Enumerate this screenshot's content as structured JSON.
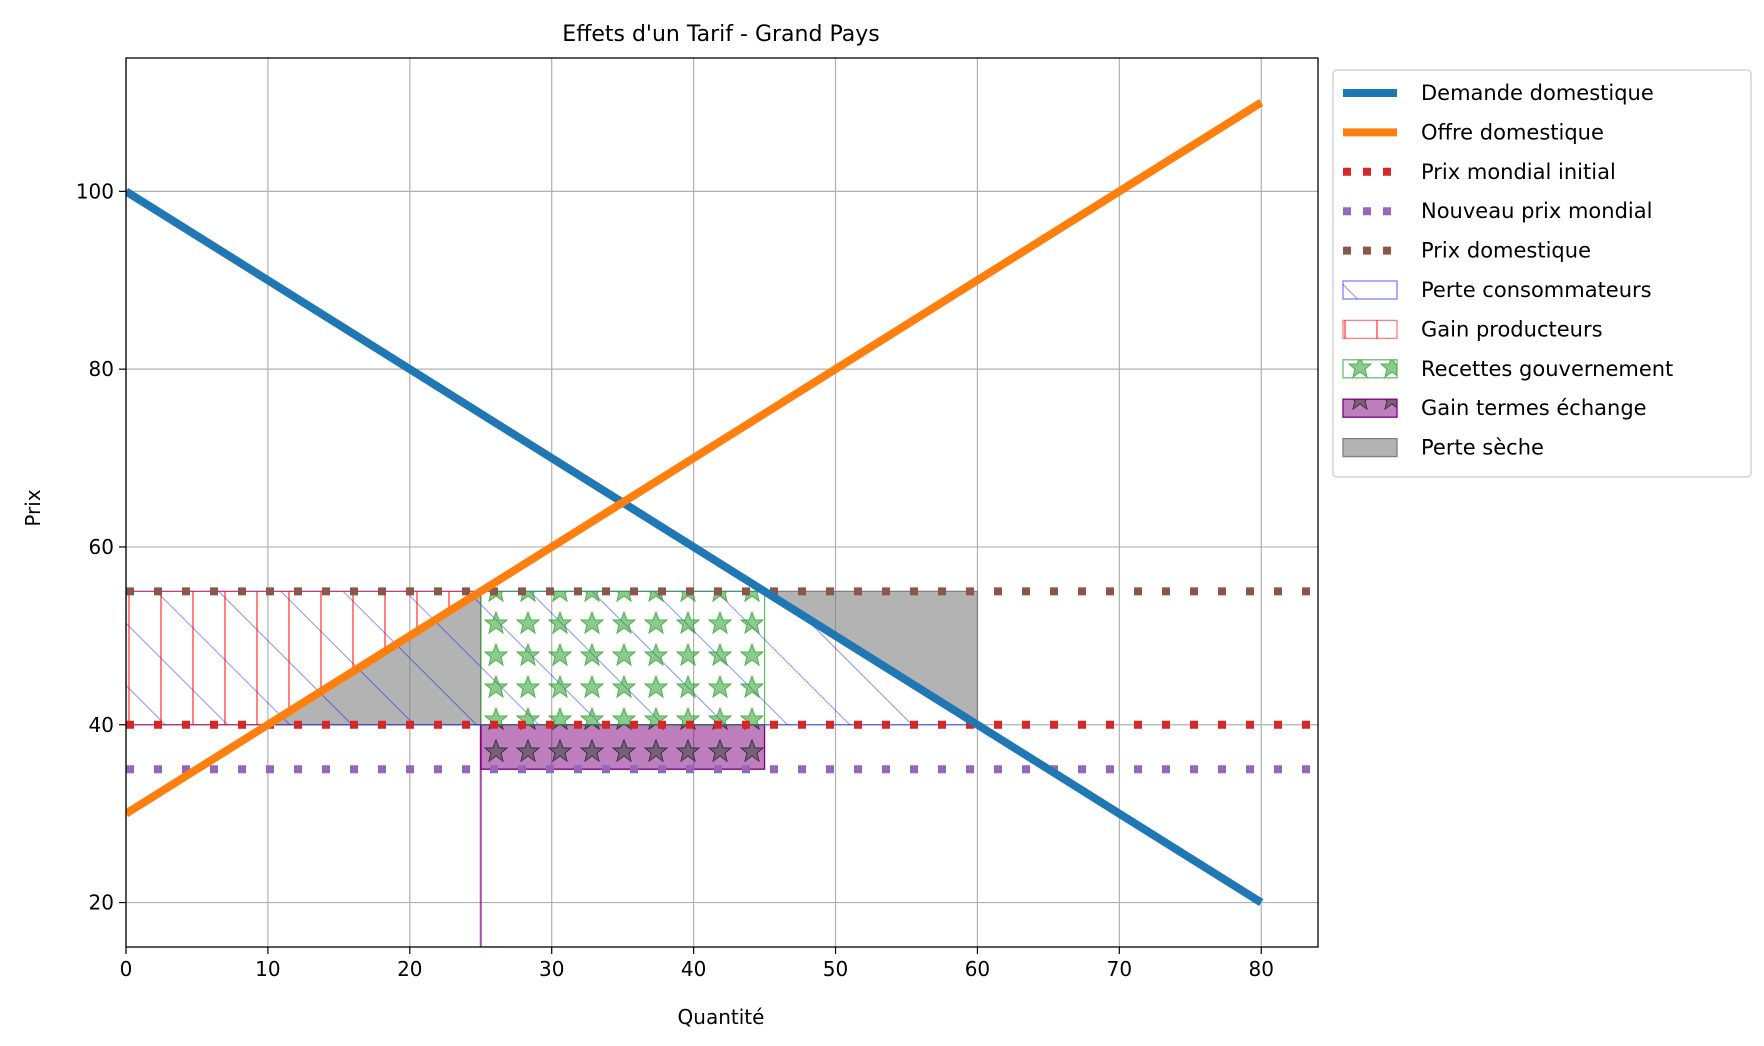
{
  "chart_data": {
    "type": "line",
    "title": "Effets d'un Tarif - Grand Pays",
    "xlabel": "Quantité",
    "ylabel": "Prix",
    "xlim": [
      0,
      84
    ],
    "ylim": [
      15,
      115
    ],
    "xticks": [
      0,
      10,
      20,
      30,
      40,
      50,
      60,
      70,
      80
    ],
    "yticks": [
      20,
      40,
      60,
      80,
      100
    ],
    "grid": true,
    "legend_position": "outside-right-top",
    "series": [
      {
        "name": "Demande domestique",
        "kind": "line",
        "color": "#1f77b4",
        "x": [
          0,
          80
        ],
        "y": [
          100,
          20
        ]
      },
      {
        "name": "Offre domestique",
        "kind": "line",
        "color": "#ff7f0e",
        "x": [
          0,
          80
        ],
        "y": [
          30,
          110
        ]
      },
      {
        "name": "Prix mondial initial",
        "kind": "hline",
        "color": "#d62728",
        "y": 40
      },
      {
        "name": "Nouveau prix mondial",
        "kind": "hline",
        "color": "#9467bd",
        "y": 35
      },
      {
        "name": "Prix domestique",
        "kind": "hline",
        "color": "#8c564b",
        "y": 55
      }
    ],
    "areas": [
      {
        "name": "Perte consommateurs",
        "kind": "polygon",
        "color": "#0000ff",
        "hatch": "diagonal",
        "points": [
          [
            0,
            40
          ],
          [
            60,
            40
          ],
          [
            45,
            55
          ],
          [
            0,
            55
          ]
        ]
      },
      {
        "name": "Gain producteurs",
        "kind": "polygon",
        "color": "#ff0000",
        "hatch": "vertical",
        "points": [
          [
            0,
            40
          ],
          [
            10,
            40
          ],
          [
            25,
            55
          ],
          [
            0,
            55
          ]
        ]
      },
      {
        "name": "Recettes gouvernement",
        "kind": "rect",
        "color": "#2ca02c",
        "hatch": "stars",
        "x": [
          25,
          45
        ],
        "y": [
          40,
          55
        ]
      },
      {
        "name": "Gain termes échange",
        "kind": "rect",
        "color": "#800080",
        "hatch": "stars",
        "x": [
          25,
          45
        ],
        "y": [
          35,
          40
        ]
      },
      {
        "name": "Perte sèche",
        "kind": "polygon",
        "color": "#808080",
        "hatch": "none",
        "points": [
          [
            10,
            40
          ],
          [
            25,
            40
          ],
          [
            25,
            55
          ]
        ]
      },
      {
        "name": "Perte sèche",
        "kind": "polygon",
        "color": "#808080",
        "hatch": "none",
        "legend": false,
        "points": [
          [
            45,
            55
          ],
          [
            60,
            55
          ],
          [
            60,
            40
          ]
        ]
      }
    ],
    "vertical_marker": {
      "x": 25,
      "y": [
        15,
        40
      ],
      "color": "#800080"
    }
  }
}
